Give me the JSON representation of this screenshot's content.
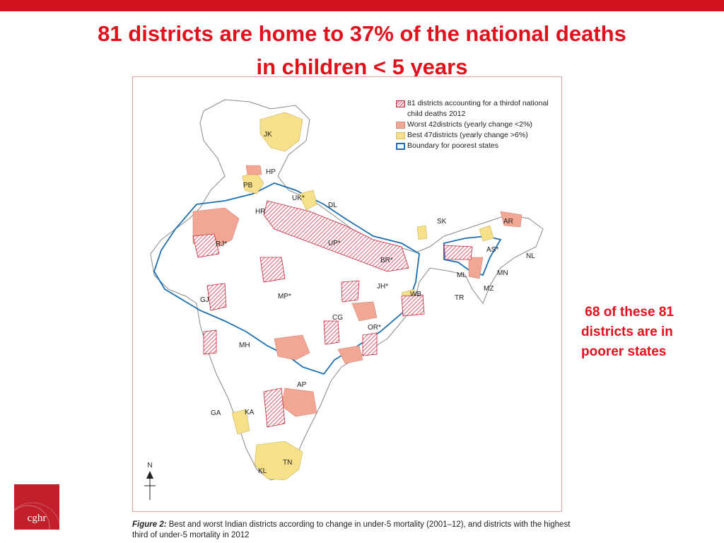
{
  "title": {
    "line1": "81 districts are home to 37% of the national deaths",
    "line2": "in children < 5 years"
  },
  "side_note": " 68 of these 81\ndistricts are in\npoorer states",
  "legend": {
    "items": [
      {
        "label": "81 districts accounting for a thirdof national child deaths 2012",
        "style": "hatch"
      },
      {
        "label": "Worst 42districts (yearly change <2%)",
        "style": "worst"
      },
      {
        "label": "Best 47districts (yearly change >6%)",
        "style": "best"
      },
      {
        "label": "Boundary for poorest states",
        "style": "boundary"
      }
    ]
  },
  "state_labels": [
    "JK",
    "HP",
    "PB",
    "UK*",
    "HR",
    "DL",
    "RJ*",
    "UP*",
    "SK",
    "AR",
    "AS*",
    "NL",
    "BR*",
    "ML",
    "MN",
    "MZ",
    "TR",
    "JH*",
    "WB",
    "GJ",
    "MP*",
    "CG",
    "OR*",
    "MH",
    "AP",
    "GA",
    "KA",
    "TN",
    "KL"
  ],
  "north_arrow": "N",
  "caption": {
    "label": "Figure 2:",
    "text": " Best and worst Indian districts according to change in under-5 mortality (2001–12), and districts with the highest third of under-5 mortality in 2012"
  },
  "logo_text": "cghr",
  "colors": {
    "accent_red": "#e3101c",
    "bar_red": "#d0131f",
    "worst": "#f2a795",
    "best": "#f7e08a",
    "hatch": "#d8334a",
    "boundary": "#1b6fb0"
  }
}
